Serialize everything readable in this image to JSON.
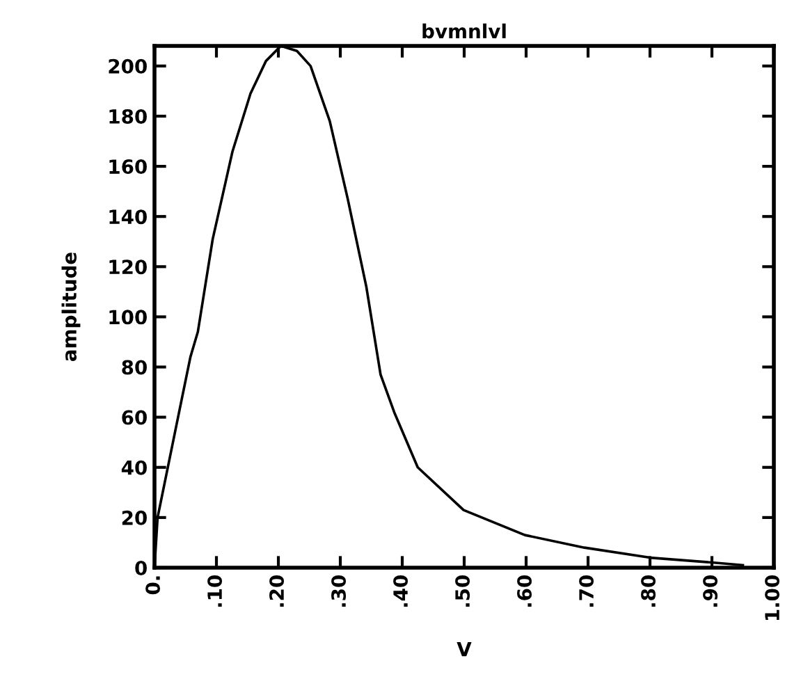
{
  "chart_data": {
    "type": "line",
    "title": "bvmnlvl",
    "xlabel": "V",
    "ylabel": "amplitude",
    "series": [
      {
        "color": "#000000",
        "x": [
          0,
          0.005,
          0.043,
          0.058,
          0.07,
          0.094,
          0.126,
          0.155,
          0.18,
          0.204,
          0.23,
          0.252,
          0.283,
          0.312,
          0.342,
          0.365,
          0.387,
          0.425,
          0.499,
          0.598,
          0.694,
          0.8,
          0.903,
          0.95
        ],
        "values": [
          0,
          20,
          66,
          84,
          94,
          131,
          166,
          189,
          202,
          208,
          206,
          200,
          178,
          147,
          112,
          77,
          62,
          40,
          23,
          13,
          8,
          4,
          2,
          1
        ]
      }
    ],
    "xlim": [
      0,
      1
    ],
    "xticks": [
      {
        "value": 0,
        "label": "0."
      },
      {
        "value": 0.1,
        "label": ".10"
      },
      {
        "value": 0.2,
        "label": ".20"
      },
      {
        "value": 0.3,
        "label": ".30"
      },
      {
        "value": 0.4,
        "label": ".40"
      },
      {
        "value": 0.5,
        "label": ".50"
      },
      {
        "value": 0.6,
        "label": ".60"
      },
      {
        "value": 0.7,
        "label": ".70"
      },
      {
        "value": 0.8,
        "label": ".80"
      },
      {
        "value": 0.9,
        "label": ".90"
      },
      {
        "value": 1,
        "label": "1.00"
      }
    ],
    "ylim": [
      0,
      208
    ],
    "yticks": [
      0,
      20,
      40,
      60,
      80,
      100,
      120,
      140,
      160,
      180,
      200
    ],
    "grid": false,
    "legend": false,
    "marker": "none",
    "line_style": "solid"
  }
}
